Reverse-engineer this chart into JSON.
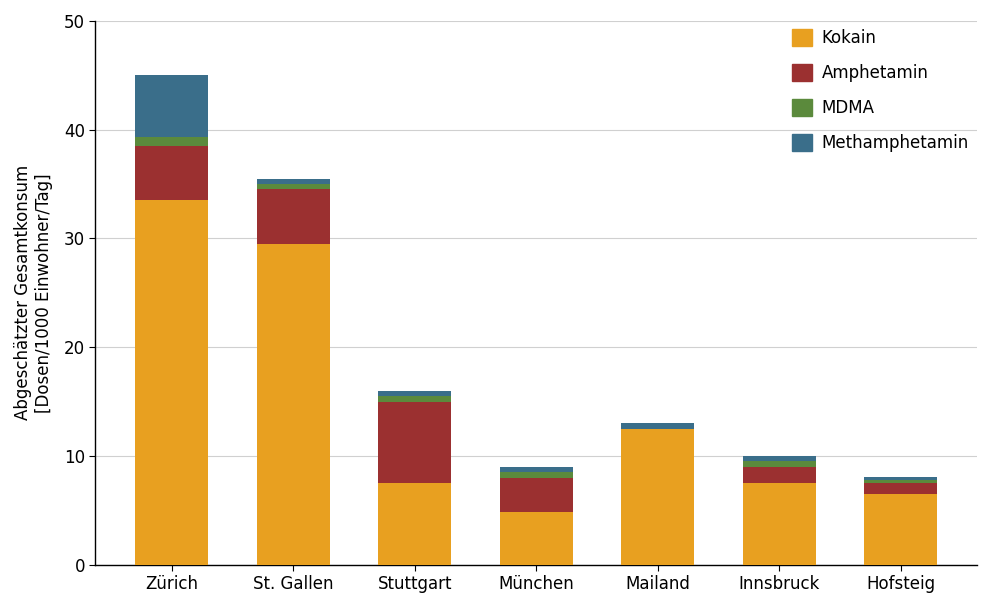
{
  "categories": [
    "Zürich",
    "St. Gallen",
    "Stuttgart",
    "München",
    "Mailand",
    "Innsbruck",
    "Hofsteig"
  ],
  "kokain": [
    33.5,
    29.5,
    7.5,
    4.8,
    12.5,
    7.5,
    6.5
  ],
  "amphetamin": [
    5.0,
    5.0,
    7.5,
    3.2,
    0.0,
    1.5,
    1.0
  ],
  "mdma": [
    0.8,
    0.5,
    0.5,
    0.5,
    0.0,
    0.5,
    0.3
  ],
  "methamphetamin": [
    5.7,
    0.5,
    0.5,
    0.5,
    0.5,
    0.5,
    0.3
  ],
  "colors": {
    "kokain": "#E8A020",
    "amphetamin": "#9B3030",
    "mdma": "#5B8A3C",
    "methamphetamin": "#3A6E8A"
  },
  "ylabel_line1": "Abgeschätzter Gesamtkonsum",
  "ylabel_line2": "[Dosen/1000 Einwohner/Tag]",
  "ylim": [
    0,
    50
  ],
  "yticks": [
    0,
    10,
    20,
    30,
    40,
    50
  ],
  "legend_labels": [
    "Kokain",
    "Amphetamin",
    "MDMA",
    "Methamphetamin"
  ],
  "bar_width": 0.6,
  "background_color": "#ffffff",
  "grid_color": "#d0d0d0",
  "axis_color": "#000000",
  "tick_fontsize": 12,
  "label_fontsize": 12,
  "legend_fontsize": 12
}
